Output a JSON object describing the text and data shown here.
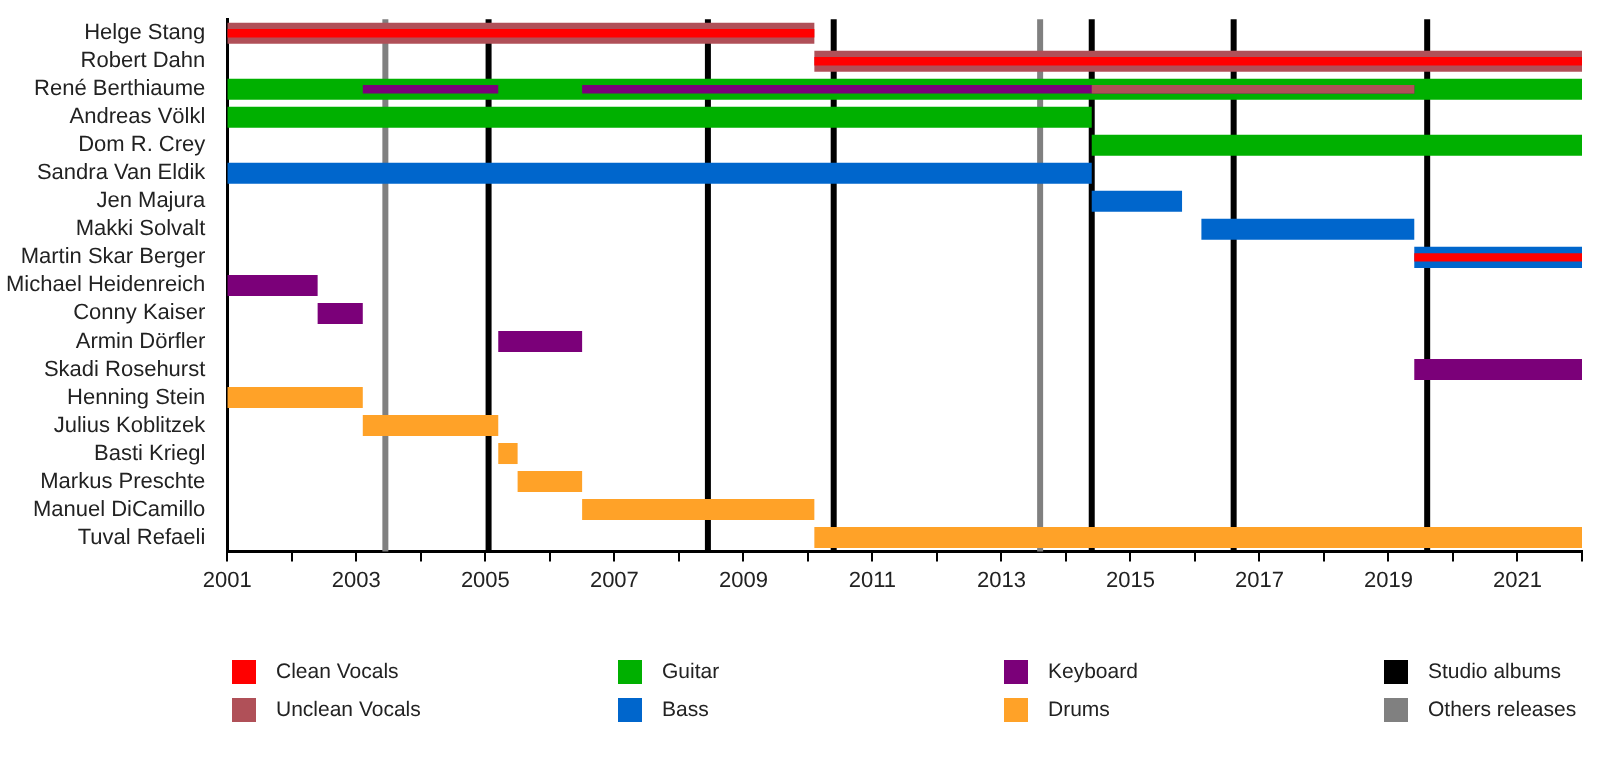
{
  "chart_data": {
    "type": "bar",
    "orientation": "horizontal",
    "categories": [
      "Helge Stang",
      "Robert Dahn",
      "René Berthiaume",
      "Andreas Völkl",
      "Dom R. Crey",
      "Sandra Van Eldik",
      "Jen Majura",
      "Makki Solvalt",
      "Martin Skar Berger",
      "Michael Heidenreich",
      "Conny Kaiser",
      "Armin Dörfler",
      "Skadi Rosehurst",
      "Henning Stein",
      "Julius Koblitzek",
      "Basti Kriegl",
      "Markus Preschte",
      "Manuel DiCamillo",
      "Tuval Refaeli"
    ],
    "series": [
      {
        "name": "Clean Vocals",
        "color": "#ff0000",
        "base": [
          2001,
          2010.1,
          null,
          null,
          null,
          null,
          null,
          null,
          2019.4,
          null,
          null,
          null,
          null,
          null,
          null,
          null,
          null,
          null,
          null
        ],
        "values": [
          9.1,
          11.9,
          null,
          null,
          null,
          null,
          null,
          null,
          2.6,
          null,
          null,
          null,
          null,
          null,
          null,
          null,
          null,
          null,
          null
        ]
      },
      {
        "name": "Unclean Vocals",
        "color": "#b05058",
        "base": [
          2001,
          2010.1,
          2014.4,
          null,
          null,
          null,
          null,
          null,
          null,
          null,
          null,
          null,
          null,
          null,
          null,
          null,
          null,
          null,
          null
        ],
        "values": [
          9.1,
          11.9,
          5,
          null,
          null,
          null,
          null,
          null,
          null,
          null,
          null,
          null,
          null,
          null,
          null,
          null,
          null,
          null,
          null
        ]
      },
      {
        "name": "Guitar",
        "color": "#00b000",
        "base": [
          null,
          null,
          2001,
          2001,
          2014.4,
          null,
          null,
          null,
          null,
          null,
          null,
          null,
          null,
          null,
          null,
          null,
          null,
          null,
          null
        ],
        "values": [
          null,
          null,
          21,
          13.4,
          7.6,
          null,
          null,
          null,
          null,
          null,
          null,
          null,
          null,
          null,
          null,
          null,
          null,
          null,
          null
        ]
      },
      {
        "name": "Bass",
        "color": "#0066cc",
        "base": [
          null,
          null,
          null,
          null,
          null,
          2001,
          2014.4,
          2016.1,
          2019.4,
          null,
          null,
          null,
          null,
          null,
          null,
          null,
          null,
          null,
          null
        ],
        "values": [
          null,
          null,
          null,
          null,
          null,
          13.4,
          1.4,
          3.3,
          2.6,
          null,
          null,
          null,
          null,
          null,
          null,
          null,
          null,
          null,
          null
        ]
      },
      {
        "name": "Keyboard",
        "color": "#7b0079",
        "base": [
          null,
          null,
          2003.1,
          null,
          null,
          null,
          null,
          null,
          null,
          2001,
          2002.4,
          2005.2,
          2019.4,
          null,
          null,
          null,
          null,
          null,
          null
        ],
        "values": [
          null,
          null,
          2.1,
          null,
          null,
          null,
          null,
          null,
          null,
          1.4,
          0.7,
          1.3,
          2.6,
          null,
          null,
          null,
          null,
          null,
          null
        ]
      },
      {
        "color": "#7b0079",
        "base": [
          null,
          null,
          2006.5,
          null,
          null,
          null,
          null,
          null,
          null,
          null,
          null,
          null,
          null,
          null,
          null,
          null,
          null,
          null,
          null
        ],
        "values": [
          null,
          null,
          12.9,
          null,
          null,
          null,
          null,
          null,
          null,
          null,
          null,
          null,
          null,
          null,
          null,
          null,
          null,
          null,
          null
        ]
      },
      {
        "name": "Drums",
        "color": "#ffa228",
        "base": [
          null,
          null,
          null,
          null,
          null,
          null,
          null,
          null,
          null,
          null,
          null,
          null,
          null,
          2001,
          2003.1,
          2005.2,
          2005.5,
          2006.5,
          2010.1
        ],
        "values": [
          null,
          null,
          null,
          null,
          null,
          null,
          null,
          null,
          null,
          null,
          null,
          null,
          null,
          2.1,
          2.1,
          0.3,
          1,
          3.6,
          11.9
        ]
      }
    ],
    "xlim": [
      2001,
      2022
    ],
    "xticks": [
      2001,
      {
        "value": 2002,
        "label": null
      },
      2003,
      {
        "value": 2004,
        "label": null
      },
      2005,
      {
        "value": 2006,
        "label": null
      },
      2007,
      {
        "value": 2008,
        "label": null
      },
      2009,
      {
        "value": 2010,
        "label": null
      },
      2011,
      {
        "value": 2012,
        "label": null
      },
      2013,
      {
        "value": 2014,
        "label": null
      },
      2015,
      {
        "value": 2016,
        "label": null
      },
      2017,
      {
        "value": 2018,
        "label": null
      },
      2019,
      {
        "value": 2020,
        "label": null
      },
      2021,
      {
        "value": 2022,
        "label": null
      }
    ],
    "ref_lines": [
      {
        "axis": "x",
        "value": 2005.05,
        "label": "Studio albums",
        "color": "#000000"
      },
      {
        "axis": "x",
        "value": 2008.45,
        "color": "#000000"
      },
      {
        "axis": "x",
        "value": 2010.4,
        "color": "#000000"
      },
      {
        "axis": "x",
        "value": 2014.4,
        "color": "#000000"
      },
      {
        "axis": "x",
        "value": 2016.6,
        "color": "#000000"
      },
      {
        "axis": "x",
        "value": 2019.6,
        "color": "#000000"
      },
      {
        "axis": "x",
        "value": 2003.45,
        "label": "Others releases",
        "color": "#808080"
      },
      {
        "axis": "x",
        "value": 2013.6,
        "color": "#808080"
      }
    ],
    "grid": false,
    "legend": "bottom"
  }
}
